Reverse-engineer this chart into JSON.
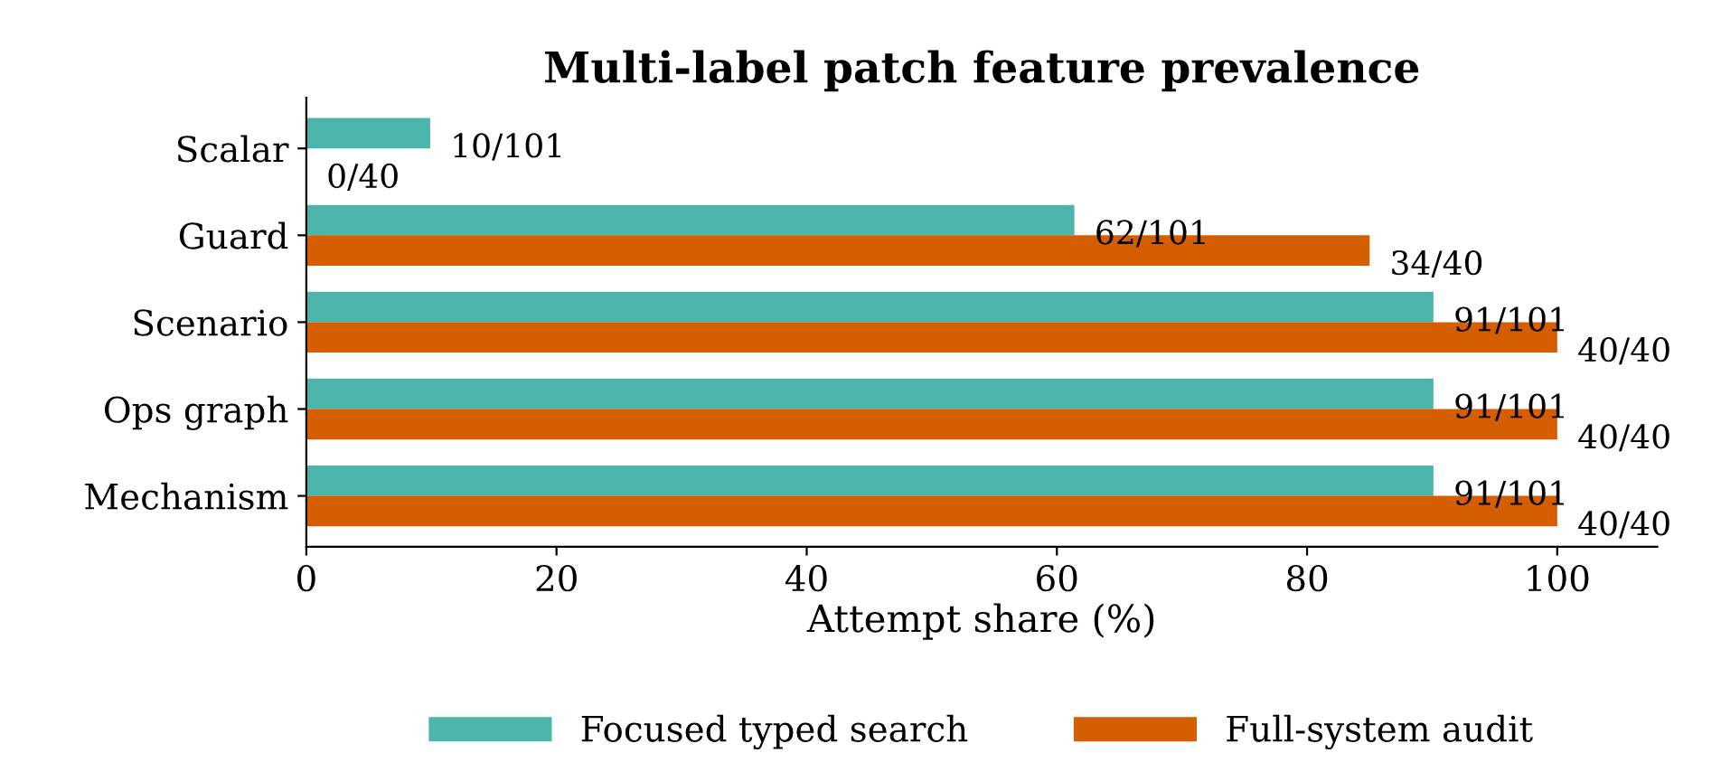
{
  "chart_data": {
    "type": "bar",
    "orientation": "horizontal",
    "title": "Multi-label patch feature prevalence",
    "xlabel": "Attempt share (%)",
    "categories": [
      "Scalar",
      "Guard",
      "Scenario",
      "Ops graph",
      "Mechanism"
    ],
    "series": [
      {
        "name": "Focused typed search",
        "color": "#4db6ac",
        "values": [
          9.9,
          61.4,
          90.1,
          90.1,
          90.1
        ],
        "value_labels": [
          "10/101",
          "62/101",
          "91/101",
          "91/101",
          "91/101"
        ]
      },
      {
        "name": "Full-system audit",
        "color": "#d55e00",
        "values": [
          0,
          85,
          100,
          100,
          100
        ],
        "value_labels": [
          "0/40",
          "34/40",
          "40/40",
          "40/40",
          "40/40"
        ]
      }
    ],
    "xlim": [
      0,
      108
    ],
    "xticks": [
      0,
      20,
      40,
      60,
      80,
      100
    ],
    "grid": false,
    "legend": "bottom"
  }
}
